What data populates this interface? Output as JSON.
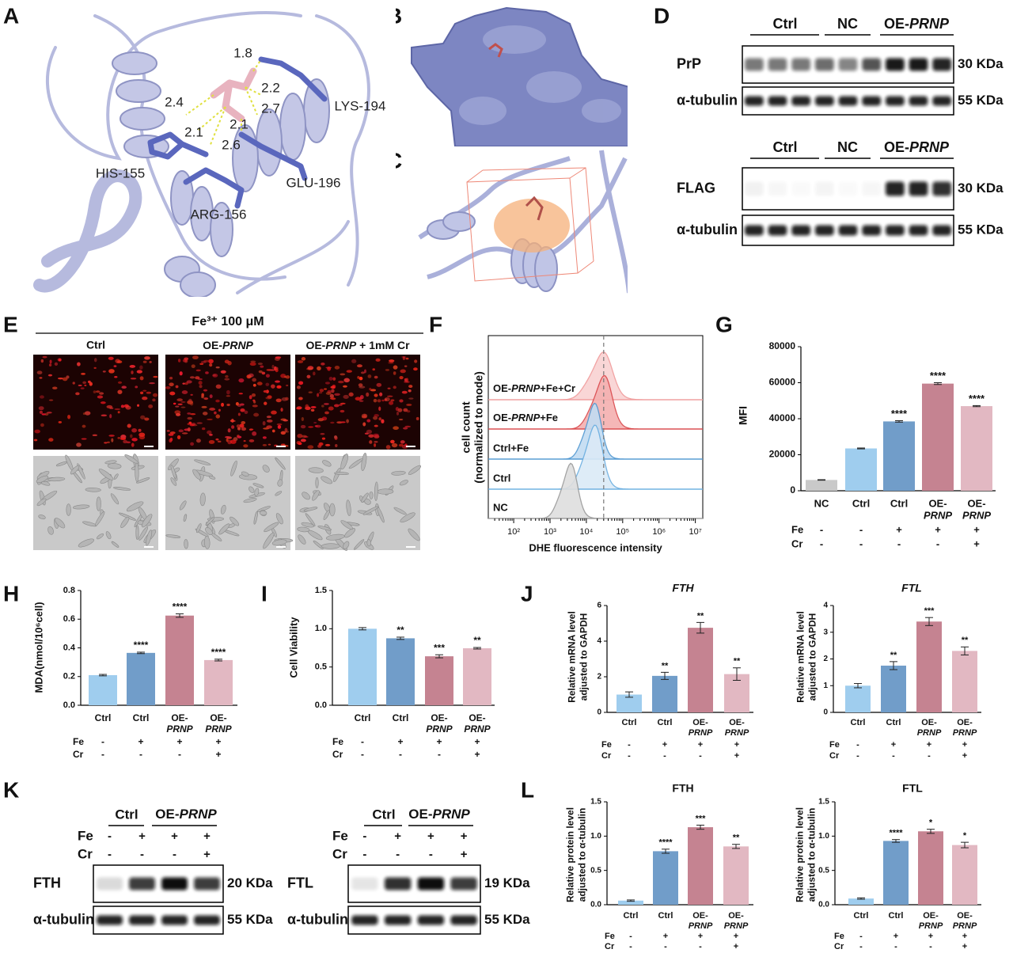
{
  "panels": [
    "A",
    "B",
    "C",
    "D",
    "E",
    "F",
    "G",
    "H",
    "I",
    "J",
    "K",
    "L"
  ],
  "docking": {
    "distances": [
      1.8,
      2.2,
      2.7,
      2.4,
      2.1,
      2.1,
      2.6
    ],
    "residues": [
      "LYS-194",
      "HIS-155",
      "GLU-196",
      "ARG-156"
    ]
  },
  "western_blot_D": [
    {
      "groups": [
        "Ctrl",
        "NC",
        [
          "OE-",
          "PRNP"
        ]
      ],
      "rows": [
        {
          "label": "PrP",
          "size": "30 KDa"
        },
        {
          "label": "α-tubulin",
          "size": "55 KDa"
        }
      ]
    },
    {
      "groups": [
        "Ctrl",
        "NC",
        [
          "OE-",
          "PRNP"
        ]
      ],
      "rows": [
        {
          "label": "FLAG",
          "size": "30 KDa"
        },
        {
          "label": "α-tubulin",
          "size": "55 KDa"
        }
      ]
    }
  ],
  "imaging_E": {
    "title": "Fe³⁺ 100 μM",
    "columns": [
      "Ctrl",
      [
        "OE-",
        "PRNP"
      ],
      [
        "OE-",
        "PRNP",
        " + 1mM Cr"
      ]
    ]
  },
  "western_blot_K": [
    {
      "groups": [
        "Ctrl",
        [
          "OE-",
          "PRNP"
        ]
      ],
      "treatments": [
        {
          "name": "Fe",
          "values": [
            "-",
            "+",
            "+",
            "+"
          ]
        },
        {
          "name": "Cr",
          "values": [
            "-",
            "-",
            "-",
            "+"
          ]
        }
      ],
      "rows": [
        {
          "label": "FTH",
          "size": "20 KDa"
        },
        {
          "label": "α-tubulin",
          "size": "55 KDa"
        }
      ]
    },
    {
      "groups": [
        "Ctrl",
        [
          "OE-",
          "PRNP"
        ]
      ],
      "treatments": [
        {
          "name": "Fe",
          "values": [
            "-",
            "+",
            "+",
            "+"
          ]
        },
        {
          "name": "Cr",
          "values": [
            "-",
            "-",
            "-",
            "+"
          ]
        }
      ],
      "rows": [
        {
          "label": "FTL",
          "size": "19 KDa"
        },
        {
          "label": "α-tubulin",
          "size": "55 KDa"
        }
      ]
    }
  ],
  "chart_data": [
    {
      "type": "density",
      "x_label": "DHE fluorescence intensity",
      "y_label": [
        "cell count",
        "(normalized to mode)"
      ],
      "log_x": true,
      "xlim": [
        20,
        16000000
      ],
      "xticks": [
        {
          "value": 100,
          "label": "10²"
        },
        {
          "value": 1000,
          "label": "10³"
        },
        {
          "value": 10000,
          "label": "10⁴"
        },
        {
          "value": 100000,
          "label": "10⁵"
        },
        {
          "value": 1000000,
          "label": "10⁶"
        },
        {
          "value": 10000000,
          "label": "10⁷"
        }
      ],
      "reference_x": 30000,
      "series": [
        {
          "name": [
            "OE-",
            "PRNP",
            "+Fe+Cr"
          ],
          "color": "#f09a9a",
          "fill": "#f9d2d2",
          "mode": 25000
        },
        {
          "name": [
            "OE-",
            "PRNP",
            "+Fe"
          ],
          "color": "#d9474a",
          "fill": "#f4b0b0",
          "mode": 27000
        },
        {
          "name": "Ctrl+Fe",
          "color": "#4f97d1",
          "fill": "#c3dcf2",
          "mode": 15000
        },
        {
          "name": "Ctrl",
          "color": "#6aaee0",
          "fill": "#dbeaf7",
          "mode": 15000
        },
        {
          "name": "NC",
          "color": "#9a9a9a",
          "fill": "#dedede",
          "mode": 3300
        }
      ]
    },
    {
      "type": "bar",
      "title": null,
      "y_label": "MFI",
      "ylim": [
        0,
        80000
      ],
      "yticks": [
        0,
        20000,
        40000,
        60000,
        80000
      ],
      "categories": [
        "NC",
        "Ctrl",
        "Ctrl",
        [
          "OE-",
          "PRNP"
        ],
        [
          "OE-",
          "PRNP"
        ]
      ],
      "colors": [
        "#c9c9c9",
        "#9fcdee",
        "#719dc9",
        "#c58391",
        "#e2b8c2"
      ],
      "series": [
        {
          "values": [
            6000,
            23500,
            38500,
            59500,
            47000
          ],
          "errors": [
            150,
            250,
            400,
            500,
            300
          ],
          "significance": [
            null,
            null,
            "****",
            "****",
            "****"
          ]
        }
      ],
      "treatments": [
        {
          "name": "Fe",
          "values": [
            "-",
            "-",
            "+",
            "+",
            "+"
          ]
        },
        {
          "name": "Cr",
          "values": [
            "-",
            "-",
            "-",
            "-",
            "+"
          ]
        }
      ]
    },
    {
      "type": "bar",
      "title": null,
      "y_label": "MDA(nmol/10⁶cell)",
      "ylim": [
        0,
        0.8
      ],
      "yticks": [
        {
          "value": 0,
          "label": "0.0"
        },
        0.2,
        0.4,
        0.6,
        0.8
      ],
      "categories": [
        "Ctrl",
        "Ctrl",
        [
          "OE-",
          "PRNP"
        ],
        [
          "OE-",
          "PRNP"
        ]
      ],
      "colors": [
        "#9fcdee",
        "#719dc9",
        "#c58391",
        "#e2b8c2"
      ],
      "series": [
        {
          "values": [
            0.21,
            0.365,
            0.625,
            0.315
          ],
          "errors": [
            0.005,
            0.005,
            0.012,
            0.006
          ],
          "significance": [
            null,
            "****",
            "****",
            "****"
          ]
        }
      ],
      "treatments": [
        {
          "name": "Fe",
          "values": [
            "-",
            "+",
            "+",
            "+"
          ]
        },
        {
          "name": "Cr",
          "values": [
            "-",
            "-",
            "-",
            "+"
          ]
        }
      ]
    },
    {
      "type": "bar",
      "title": null,
      "y_label": "Cell Viability",
      "ylim": [
        0,
        1.5
      ],
      "yticks": [
        {
          "value": 0,
          "label": "0.0"
        },
        0.5,
        {
          "value": 1,
          "label": "1.0"
        },
        1.5
      ],
      "categories": [
        "Ctrl",
        "Ctrl",
        [
          "OE-",
          "PRNP"
        ],
        [
          "OE-",
          "PRNP"
        ]
      ],
      "colors": [
        "#9fcdee",
        "#719dc9",
        "#c58391",
        "#e2b8c2"
      ],
      "series": [
        {
          "values": [
            1.0,
            0.875,
            0.64,
            0.745
          ],
          "errors": [
            0.015,
            0.015,
            0.02,
            0.01
          ],
          "significance": [
            null,
            "**",
            "***",
            "**"
          ]
        }
      ],
      "treatments": [
        {
          "name": "Fe",
          "values": [
            "-",
            "+",
            "+",
            "+"
          ]
        },
        {
          "name": "Cr",
          "values": [
            "-",
            "-",
            "-",
            "+"
          ]
        }
      ]
    },
    {
      "type": "bar",
      "title": "FTH",
      "y_label": [
        "Relative mRNA level",
        "adjusted to GAPDH"
      ],
      "ylim": [
        0,
        6
      ],
      "yticks": [
        0,
        2,
        4,
        6
      ],
      "categories": [
        "Ctrl",
        "Ctrl",
        [
          "OE-",
          "PRNP"
        ],
        [
          "OE-",
          "PRNP"
        ]
      ],
      "colors": [
        "#9fcdee",
        "#719dc9",
        "#c58391",
        "#e2b8c2"
      ],
      "series": [
        {
          "values": [
            1.0,
            2.05,
            4.75,
            2.15
          ],
          "errors": [
            0.15,
            0.2,
            0.3,
            0.35
          ],
          "significance": [
            null,
            "**",
            "**",
            "**"
          ]
        }
      ],
      "treatments": [
        {
          "name": "Fe",
          "values": [
            "-",
            "+",
            "+",
            "+"
          ]
        },
        {
          "name": "Cr",
          "values": [
            "-",
            "-",
            "-",
            "+"
          ]
        }
      ]
    },
    {
      "type": "bar",
      "title": "FTL",
      "y_label": [
        "Relative mRNA level",
        "adjusted to GAPDH"
      ],
      "ylim": [
        0,
        4
      ],
      "yticks": [
        0,
        1,
        2,
        3,
        4
      ],
      "categories": [
        "Ctrl",
        "Ctrl",
        [
          "OE-",
          "PRNP"
        ],
        [
          "OE-",
          "PRNP"
        ]
      ],
      "colors": [
        "#9fcdee",
        "#719dc9",
        "#c58391",
        "#e2b8c2"
      ],
      "series": [
        {
          "values": [
            1.0,
            1.75,
            3.4,
            2.3
          ],
          "errors": [
            0.08,
            0.15,
            0.15,
            0.15
          ],
          "significance": [
            null,
            "**",
            "***",
            "**"
          ]
        }
      ],
      "treatments": [
        {
          "name": "Fe",
          "values": [
            "-",
            "+",
            "+",
            "+"
          ]
        },
        {
          "name": "Cr",
          "values": [
            "-",
            "-",
            "-",
            "+"
          ]
        }
      ]
    },
    {
      "type": "bar",
      "title": "FTH",
      "y_label": [
        "Relative protein level",
        "adjusted to α-tubulin"
      ],
      "ylim": [
        0,
        1.5
      ],
      "yticks": [
        {
          "value": 0,
          "label": "0.0"
        },
        0.5,
        {
          "value": 1,
          "label": "1.0"
        },
        1.5
      ],
      "categories": [
        "Ctrl",
        "Ctrl",
        [
          "OE-",
          "PRNP"
        ],
        [
          "OE-",
          "PRNP"
        ]
      ],
      "colors": [
        "#9fcdee",
        "#719dc9",
        "#c58391",
        "#e2b8c2"
      ],
      "series": [
        {
          "values": [
            0.06,
            0.78,
            1.13,
            0.85
          ],
          "errors": [
            0.01,
            0.03,
            0.03,
            0.03
          ],
          "significance": [
            null,
            "****",
            "***",
            "**"
          ]
        }
      ],
      "treatments": [
        {
          "name": "Fe",
          "values": [
            "-",
            "+",
            "+",
            "+"
          ]
        },
        {
          "name": "Cr",
          "values": [
            "-",
            "-",
            "-",
            "+"
          ]
        }
      ]
    },
    {
      "type": "bar",
      "title": "FTL",
      "y_label": [
        "Relative protein level",
        "adjusted to α-tubulin"
      ],
      "ylim": [
        0,
        1.5
      ],
      "yticks": [
        {
          "value": 0,
          "label": "0.0"
        },
        0.5,
        {
          "value": 1,
          "label": "1.0"
        },
        1.5
      ],
      "categories": [
        "Ctrl",
        "Ctrl",
        [
          "OE-",
          "PRNP"
        ],
        [
          "OE-",
          "PRNP"
        ]
      ],
      "colors": [
        "#9fcdee",
        "#719dc9",
        "#c58391",
        "#e2b8c2"
      ],
      "series": [
        {
          "values": [
            0.09,
            0.93,
            1.07,
            0.87
          ],
          "errors": [
            0.01,
            0.02,
            0.03,
            0.04
          ],
          "significance": [
            null,
            "****",
            "*",
            "*"
          ]
        }
      ],
      "treatments": [
        {
          "name": "Fe",
          "values": [
            "-",
            "+",
            "+",
            "+"
          ]
        },
        {
          "name": "Cr",
          "values": [
            "-",
            "-",
            "-",
            "+"
          ]
        }
      ]
    }
  ]
}
